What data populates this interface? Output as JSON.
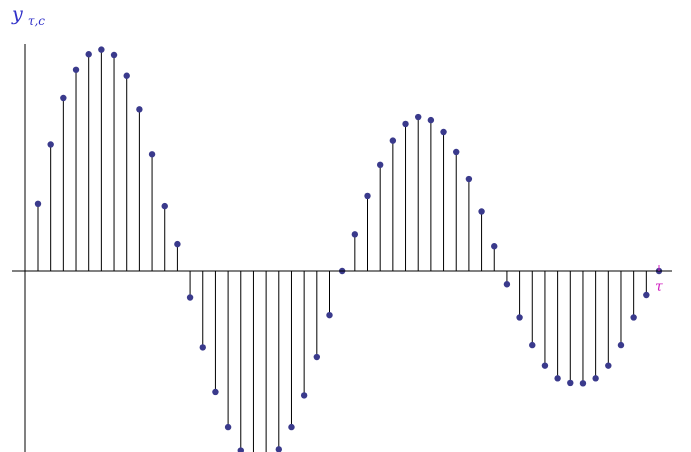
{
  "chart_data": {
    "type": "stem",
    "ylabel": {
      "base": "y",
      "subscript": "τ,c"
    },
    "xlabel": "τ",
    "grid": false,
    "legend": "none",
    "xlim": [
      0,
      49
    ],
    "ylim": [
      -1.0,
      1.28
    ],
    "x": [
      0,
      1,
      2,
      3,
      4,
      5,
      6,
      7,
      8,
      9,
      10,
      11,
      12,
      13,
      14,
      15,
      16,
      17,
      18,
      19,
      20,
      21,
      22,
      23,
      24,
      25,
      26,
      27,
      28,
      29,
      30,
      31,
      32,
      33,
      34,
      35,
      36,
      37,
      38,
      39,
      40,
      41,
      42,
      43,
      44,
      45,
      46,
      47,
      48,
      49
    ],
    "values": [
      0.35,
      0.659,
      0.901,
      1.048,
      1.129,
      1.153,
      1.125,
      1.017,
      0.842,
      0.608,
      0.338,
      0.14,
      -0.138,
      -0.398,
      -0.63,
      -0.813,
      -0.935,
      -0.99,
      -0.988,
      -0.929,
      -0.813,
      -0.648,
      -0.448,
      -0.23,
      0.0,
      0.191,
      0.391,
      0.553,
      0.679,
      0.766,
      0.802,
      0.786,
      0.724,
      0.62,
      0.479,
      0.31,
      0.129,
      -0.069,
      -0.242,
      -0.386,
      -0.493,
      -0.559,
      -0.583,
      -0.585,
      -0.559,
      -0.493,
      -0.386,
      -0.242,
      -0.125,
      0.0
    ],
    "colors": {
      "marker": "#3a3a8c",
      "stem": "#000000",
      "axis": "#000000",
      "ylabel": "#3030c8",
      "xlabel": "#d020c0"
    }
  }
}
